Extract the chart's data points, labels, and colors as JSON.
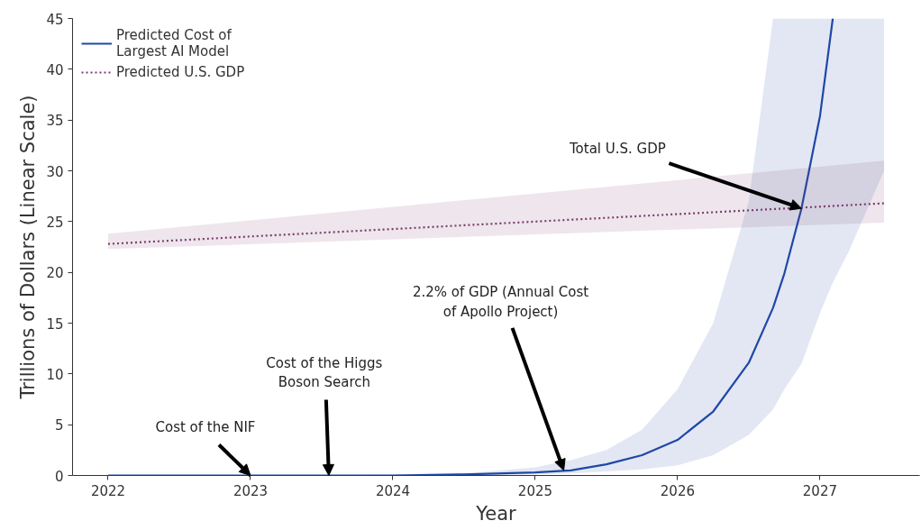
{
  "chart_data": {
    "type": "line",
    "xlabel": "Year",
    "ylabel": "Trillions of Dollars (Linear Scale)",
    "xlim": [
      2021.75,
      2027.7
    ],
    "xticks": [
      2022,
      2023,
      2024,
      2025,
      2026,
      2027
    ],
    "ylim": [
      0,
      45
    ],
    "yticks": [
      0,
      5,
      10,
      15,
      20,
      25,
      30,
      35,
      40,
      45
    ],
    "grid": false,
    "legend": "top left",
    "series": [
      {
        "name": "Predicted Cost of\nLargest AI Model",
        "color": "#1f48a6",
        "line_style": "solid",
        "x": [
          2022,
          2022.5,
          2023,
          2023.5,
          2024,
          2024.5,
          2025,
          2025.25,
          2025.5,
          2025.75,
          2026,
          2026.25,
          2026.5,
          2026.67,
          2026.75,
          2026.87,
          2027,
          2027.09,
          2027.2,
          2027.45
        ],
        "values": [
          0,
          0,
          0,
          0,
          0,
          0.1,
          0.3,
          0.5,
          1.1,
          2.0,
          3.5,
          6.3,
          11.1,
          16.5,
          19.9,
          26.3,
          35.4,
          45,
          null,
          null
        ],
        "lower": [
          0,
          0,
          0,
          0,
          0,
          0,
          0.1,
          0.2,
          0.4,
          0.6,
          1.0,
          2.0,
          4.0,
          6.5,
          8.5,
          11,
          16,
          19,
          22,
          30
        ],
        "upper": [
          0,
          0,
          0,
          0,
          0.1,
          0.2,
          0.8,
          1.5,
          2.5,
          4.5,
          8.5,
          15,
          27,
          45,
          45,
          45,
          45,
          45,
          45,
          45
        ]
      },
      {
        "name": "Predicted U.S. GDP",
        "color": "#7d3c6e",
        "line_style": "dotted",
        "x": [
          2022,
          2027.45
        ],
        "values": [
          22.8,
          26.8
        ],
        "lower": [
          22.3,
          24.9
        ],
        "upper": [
          23.8,
          31.0
        ]
      }
    ],
    "annotations": [
      {
        "text": "Cost of the NIF",
        "x": 2023.0,
        "y": 0
      },
      {
        "text": "Cost of the Higgs\nBoson Search",
        "x": 2023.55,
        "y": 0
      },
      {
        "text": "2.2% of GDP (Annual Cost\nof Apollo Project)",
        "x": 2025.2,
        "y": 0.5
      },
      {
        "text": "Total U.S. GDP",
        "x": 2026.87,
        "y": 26.3
      }
    ]
  }
}
